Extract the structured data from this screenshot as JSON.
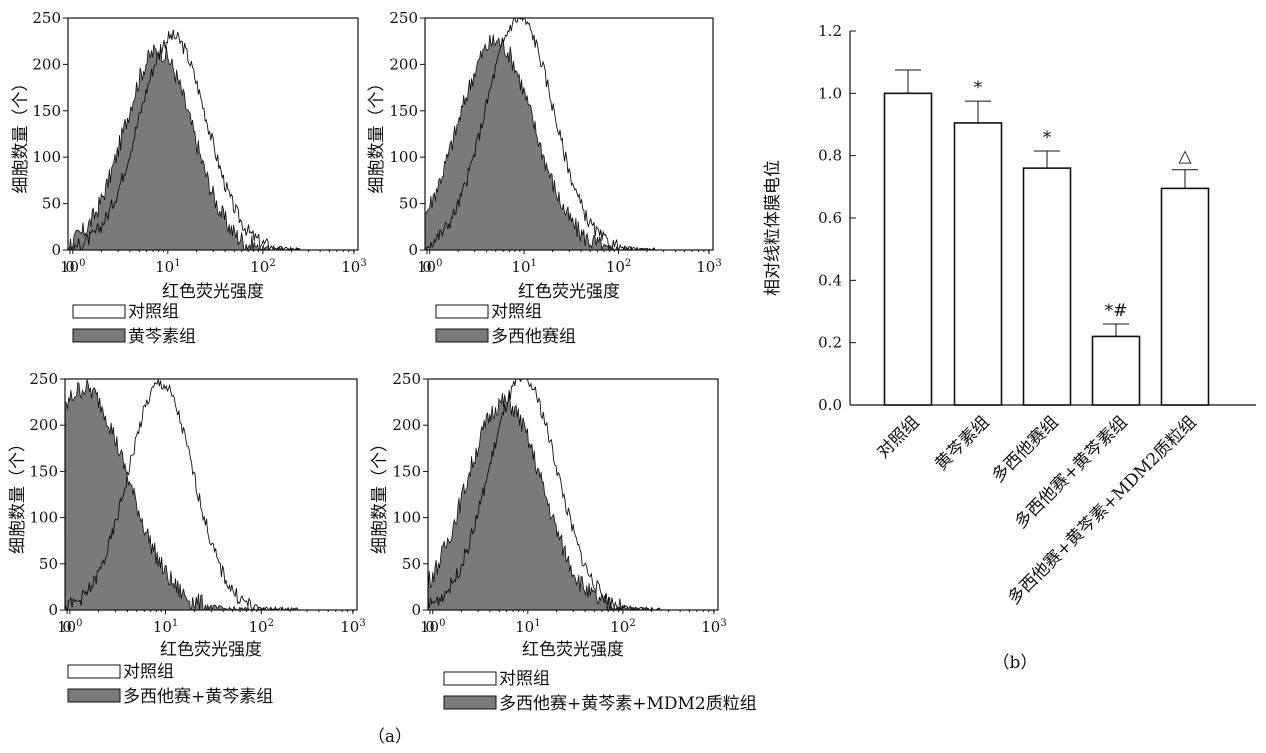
{
  "histograms": [
    {
      "id": "h1",
      "ylabel": "细胞数量（个）",
      "xlabel": "红色荧光强度",
      "y_ticks": [
        "250",
        "200",
        "150",
        "100",
        "50",
        "0"
      ],
      "x_ticks": [
        {
          "base": "0",
          "exp": ""
        },
        {
          "base": "10",
          "exp": "0"
        },
        {
          "base": "10",
          "exp": "1"
        },
        {
          "base": "10",
          "exp": "2"
        },
        {
          "base": "10",
          "exp": "3"
        }
      ],
      "legend": [
        "对照组",
        "黄芩素组"
      ],
      "control": {
        "peak_log": 1.05,
        "peak": 230,
        "sigma_log": 0.36
      },
      "treated": {
        "peak_log": 0.9,
        "peak": 215,
        "sigma_log": 0.36
      }
    },
    {
      "id": "h2",
      "ylabel": "细胞数量（个）",
      "xlabel": "红色荧光强度",
      "y_ticks": [
        "250",
        "200",
        "150",
        "100",
        "50",
        "0"
      ],
      "x_ticks": [
        {
          "base": "0",
          "exp": ""
        },
        {
          "base": "10",
          "exp": "0"
        },
        {
          "base": "10",
          "exp": "1"
        },
        {
          "base": "10",
          "exp": "2"
        },
        {
          "base": "10",
          "exp": "3"
        }
      ],
      "legend": [
        "对照组",
        "多西他赛组"
      ],
      "control": {
        "peak_log": 0.95,
        "peak": 250,
        "sigma_log": 0.36
      },
      "treated": {
        "peak_log": 0.7,
        "peak": 225,
        "sigma_log": 0.4
      }
    },
    {
      "id": "h3",
      "ylabel": "细胞数量（个）",
      "xlabel": "红色荧光强度",
      "y_ticks": [
        "250",
        "200",
        "150",
        "100",
        "50",
        "0"
      ],
      "x_ticks": [
        {
          "base": "0",
          "exp": ""
        },
        {
          "base": "10",
          "exp": "0"
        },
        {
          "base": "10",
          "exp": "1"
        },
        {
          "base": "10",
          "exp": "2"
        },
        {
          "base": "10",
          "exp": "3"
        }
      ],
      "legend": [
        "对照组",
        "多西他赛+黄芩素组"
      ],
      "control": {
        "peak_log": 0.95,
        "peak": 245,
        "sigma_log": 0.34
      },
      "treated": {
        "peak_log": 0.15,
        "peak": 240,
        "sigma_log": 0.45
      }
    },
    {
      "id": "h4",
      "ylabel": "细胞数量（个）",
      "xlabel": "红色荧光强度",
      "y_ticks": [
        "250",
        "200",
        "150",
        "100",
        "50",
        "0"
      ],
      "x_ticks": [
        {
          "base": "0",
          "exp": ""
        },
        {
          "base": "10",
          "exp": "0"
        },
        {
          "base": "10",
          "exp": "1"
        },
        {
          "base": "10",
          "exp": "2"
        },
        {
          "base": "10",
          "exp": "3"
        }
      ],
      "legend": [
        "对照组",
        "多西他赛+黄芩素+MDM2质粒组"
      ],
      "control": {
        "peak_log": 0.95,
        "peak": 250,
        "sigma_log": 0.36
      },
      "treated": {
        "peak_log": 0.75,
        "peak": 225,
        "sigma_log": 0.4
      }
    }
  ],
  "panel_a_label": "（a）",
  "panel_b_label": "（b）",
  "chart_data": {
    "type": "bar",
    "categories": [
      "对照组",
      "黄芩素组",
      "多西他赛组",
      "多西他赛+黄芩素组",
      "多西他赛+黄芩素+MDM2质粒组"
    ],
    "values": [
      1.0,
      0.905,
      0.76,
      0.22,
      0.695
    ],
    "errors": [
      0.075,
      0.07,
      0.055,
      0.04,
      0.06
    ],
    "annotations": [
      "",
      "*",
      "*",
      "*#",
      "△"
    ],
    "ylabel": "相对线粒体膜电位",
    "ylim": [
      0,
      1.2
    ],
    "y_ticks": [
      "0.0",
      "0.2",
      "0.4",
      "0.6",
      "0.8",
      "1.0",
      "1.2"
    ],
    "bar_color": "#ffffff",
    "edge_color": "#111111"
  },
  "colors": {
    "fill": "#7a7a7a",
    "line": "#111111"
  }
}
